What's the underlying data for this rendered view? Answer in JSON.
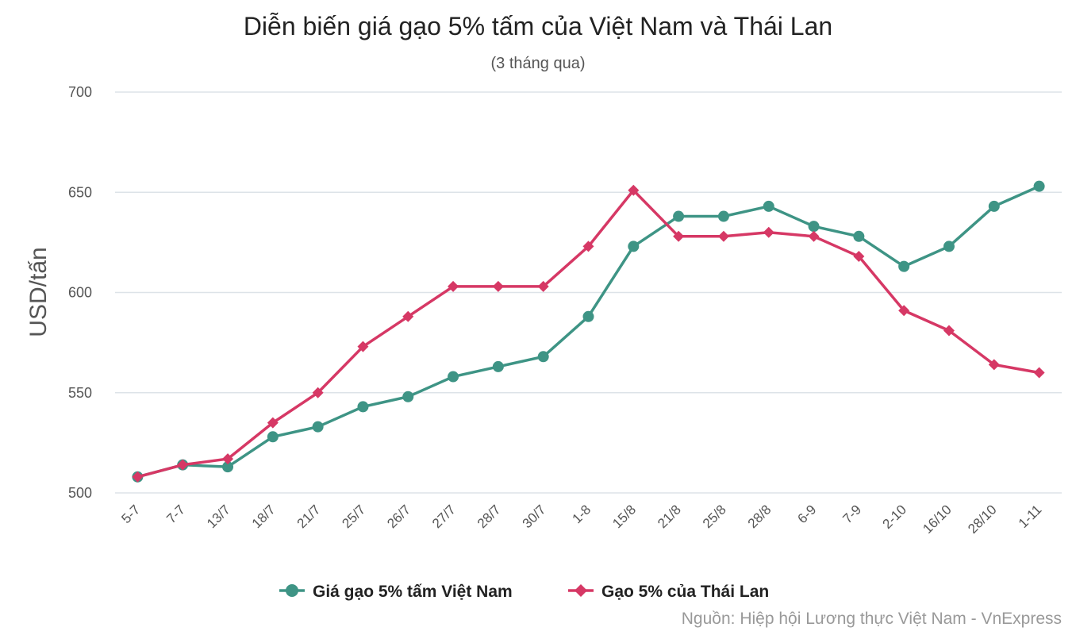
{
  "chart_data": {
    "type": "line",
    "title": "Diễn biến giá gạo 5% tấm của Việt Nam và Thái Lan",
    "subtitle": "(3 tháng qua)",
    "ylabel": "USD/tấn",
    "xlabel": "",
    "ylim": [
      500,
      700
    ],
    "yticks": [
      500,
      550,
      600,
      650,
      700
    ],
    "grid": true,
    "legend_position": "bottom",
    "categories": [
      "5-7",
      "7-7",
      "13/7",
      "18/7",
      "21/7",
      "25/7",
      "26/7",
      "27/7",
      "28/7",
      "30/7",
      "1-8",
      "15/8",
      "21/8",
      "25/8",
      "28/8",
      "6-9",
      "7-9",
      "2-10",
      "16/10",
      "28/10",
      "1-11"
    ],
    "series": [
      {
        "name": "Giá gạo 5% tấm Việt Nam",
        "color": "#3e9485",
        "marker": "circle",
        "values": [
          508,
          514,
          513,
          528,
          533,
          543,
          548,
          558,
          563,
          568,
          588,
          623,
          638,
          638,
          643,
          633,
          628,
          613,
          623,
          643,
          653
        ]
      },
      {
        "name": "Gạo 5% của Thái Lan",
        "color": "#d63865",
        "marker": "diamond",
        "values": [
          508,
          514,
          517,
          535,
          550,
          573,
          588,
          603,
          603,
          603,
          623,
          651,
          628,
          628,
          630,
          628,
          618,
          591,
          581,
          564,
          560
        ]
      }
    ],
    "source": "Nguồn: Hiệp hội Lương thực Việt Nam - VnExpress"
  }
}
